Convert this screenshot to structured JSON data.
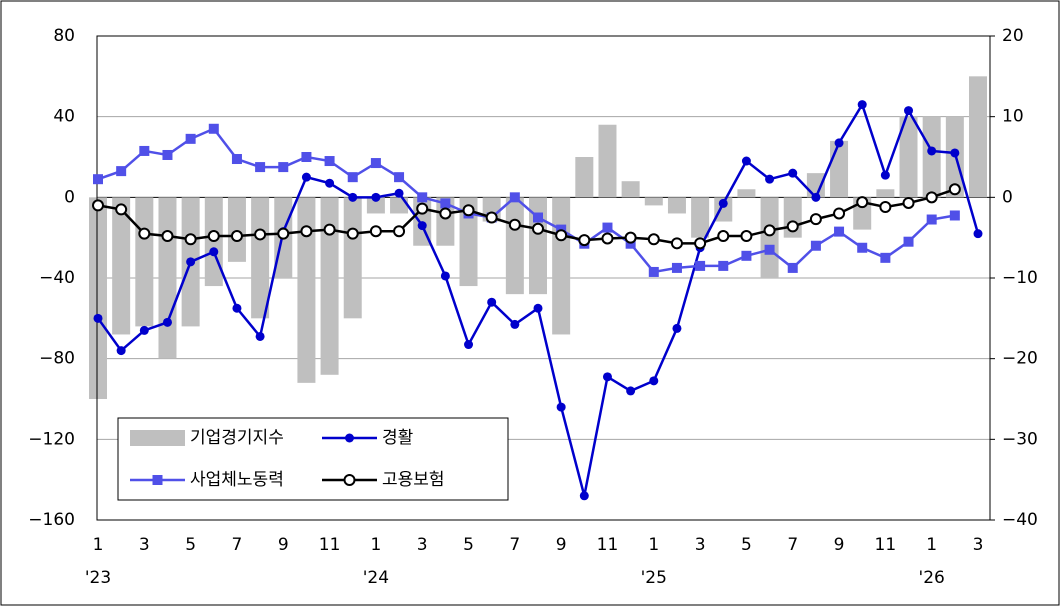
{
  "chart_data": {
    "type": "combo",
    "categories": [
      "1",
      null,
      "3",
      null,
      "5",
      null,
      "7",
      null,
      "9",
      null,
      "11",
      null,
      "1",
      null,
      "3",
      null,
      "5",
      null,
      "7",
      null,
      "9",
      null,
      "11",
      null,
      "1",
      null,
      "3",
      null,
      "5",
      null,
      "7",
      null,
      "9",
      null,
      "11",
      null,
      "1",
      null,
      "3"
    ],
    "year_labels": [
      "'23",
      "'24",
      "'25",
      "'26"
    ],
    "series": [
      {
        "name": "기업경기지수",
        "type": "bar",
        "color": "#bfbfbf",
        "values": [
          -100,
          -68,
          -64,
          -80,
          -64,
          -44,
          -32,
          -60,
          -40,
          -92,
          -88,
          -60,
          -8,
          -8,
          -24,
          -24,
          -44,
          -12,
          -48,
          -48,
          -68,
          20,
          36,
          8,
          -4,
          -8,
          -20,
          -12,
          4,
          -40,
          -20,
          12,
          28,
          -16,
          4,
          40,
          40,
          40,
          60
        ]
      },
      {
        "name": "경활",
        "type": "line",
        "marker": "circle",
        "color": "#0000cc",
        "values": [
          -60,
          -76,
          -66,
          -62,
          -32,
          -27,
          -55,
          -69,
          -17,
          10,
          7,
          0,
          0,
          2,
          -14,
          -39,
          -73,
          -52,
          -63,
          -55,
          -104,
          -148,
          -89,
          -96,
          -91,
          -65,
          -25,
          -3,
          18,
          9,
          12,
          0,
          27,
          46,
          11,
          43,
          23,
          22,
          -18
        ]
      },
      {
        "name": "사업체노동력",
        "type": "line",
        "marker": "square",
        "color": "#5050e8",
        "values": [
          9,
          13,
          23,
          21,
          29,
          34,
          19,
          15,
          15,
          20,
          18,
          10,
          17,
          10,
          0,
          -3,
          -8,
          -10,
          0,
          -10,
          -16,
          -23,
          -15,
          -23,
          -37,
          -35,
          -34,
          -34,
          -29,
          -26,
          -35,
          -24,
          -17,
          -25,
          -30,
          -22,
          -11,
          -9,
          null
        ]
      },
      {
        "name": "고용보험",
        "type": "line",
        "marker": "open-circle",
        "color": "#000000",
        "axis": "y2",
        "values": [
          -1.0,
          -1.5,
          -4.5,
          -4.8,
          -5.2,
          -4.8,
          -4.8,
          -4.6,
          -4.5,
          -4.2,
          -4.0,
          -4.5,
          -4.2,
          -4.2,
          -1.4,
          -2.0,
          -1.6,
          -2.5,
          -3.4,
          -3.9,
          -4.7,
          -5.3,
          -5.1,
          -5.0,
          -5.2,
          -5.7,
          -5.7,
          -4.8,
          -4.8,
          -4.1,
          -3.6,
          -2.7,
          -2.0,
          -0.6,
          -1.2,
          -0.7,
          0,
          1.0,
          null
        ]
      }
    ],
    "ylim": [
      -160,
      80
    ],
    "yticks": [
      {
        "value": -160,
        "label": "−160"
      },
      {
        "value": -120,
        "label": "−120"
      },
      {
        "value": -80,
        "label": "−80"
      },
      {
        "value": -40,
        "label": "−40"
      },
      0,
      40,
      80
    ],
    "y2lim": [
      -40,
      20
    ],
    "y2ticks": [
      {
        "value": -40,
        "label": "−40"
      },
      {
        "value": -30,
        "label": "−30"
      },
      {
        "value": -20,
        "label": "−20"
      },
      {
        "value": -10,
        "label": "−10"
      },
      0,
      10,
      20
    ],
    "grid": true
  }
}
